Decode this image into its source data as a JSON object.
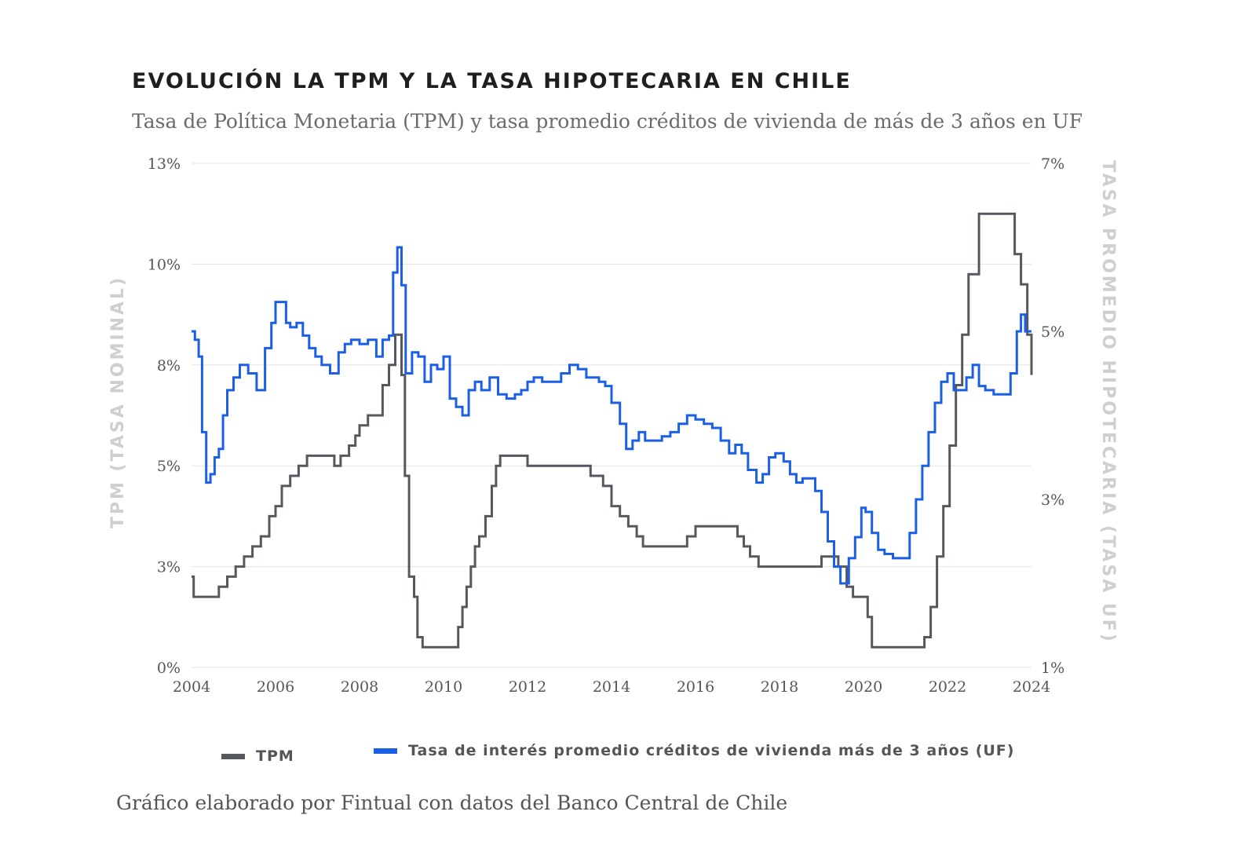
{
  "chart_data": {
    "type": "line",
    "title": "EVOLUCIÓN LA TPM Y LA TASA HIPOTECARIA EN CHILE",
    "subtitle": "Tasa de Política Monetaria (TPM) y tasa promedio créditos de vivienda de más de 3 años en UF",
    "caption": "Gráfico elaborado por Fintual con datos del Banco Central de Chile",
    "ylabel_left": "TPM (TASA NOMINAL)",
    "ylabel_right": "TASA PROMEDIO HIPOTECARIA (TASA UF)",
    "xlim": [
      2004,
      2024
    ],
    "ylim_left": [
      0,
      12.5
    ],
    "ylim_right": [
      1,
      7
    ],
    "xticks": [
      "2004",
      "2006",
      "2008",
      "2010",
      "2012",
      "2014",
      "2016",
      "2018",
      "2020",
      "2022",
      "2024"
    ],
    "yticks_left": [
      {
        "value": 0,
        "label": "0%"
      },
      {
        "value": 2.5,
        "label": "3%"
      },
      {
        "value": 5,
        "label": "5%"
      },
      {
        "value": 7.5,
        "label": "8%"
      },
      {
        "value": 10,
        "label": "10%"
      },
      {
        "value": 12.5,
        "label": "13%"
      }
    ],
    "yticks_right": [
      {
        "value": 1,
        "label": "1%"
      },
      {
        "value": 3,
        "label": "3%"
      },
      {
        "value": 5,
        "label": "5%"
      },
      {
        "value": 7,
        "label": "7%"
      }
    ],
    "grid": true,
    "series": [
      {
        "name": "TPM",
        "axis": "left",
        "color": "#55585e",
        "step": true,
        "x": [
          2004.0,
          2004.05,
          2004.65,
          2004.85,
          2005.05,
          2005.25,
          2005.45,
          2005.65,
          2005.85,
          2006.0,
          2006.15,
          2006.35,
          2006.55,
          2006.75,
          2006.85,
          2007.4,
          2007.55,
          2007.75,
          2007.9,
          2008.0,
          2008.2,
          2008.35,
          2008.55,
          2008.7,
          2008.85,
          2008.95,
          2009.0,
          2009.08,
          2009.18,
          2009.3,
          2009.38,
          2009.5,
          2010.35,
          2010.45,
          2010.55,
          2010.65,
          2010.75,
          2010.85,
          2011.0,
          2011.15,
          2011.25,
          2011.35,
          2011.5,
          2012.0,
          2012.5,
          2013.5,
          2013.8,
          2014.0,
          2014.2,
          2014.4,
          2014.6,
          2014.75,
          2014.85,
          2015.0,
          2015.8,
          2016.0,
          2016.15,
          2016.5,
          2017.0,
          2017.15,
          2017.3,
          2017.5,
          2018.0,
          2018.7,
          2019.0,
          2019.4,
          2019.6,
          2019.75,
          2019.85,
          2020.1,
          2020.2,
          2021.35,
          2021.45,
          2021.6,
          2021.75,
          2021.9,
          2022.05,
          2022.2,
          2022.35,
          2022.5,
          2022.75,
          2023.5,
          2023.6,
          2023.75,
          2023.9,
          2024.0
        ],
        "y": [
          2.25,
          1.75,
          2.0,
          2.25,
          2.5,
          2.75,
          3.0,
          3.25,
          3.75,
          4.0,
          4.5,
          4.75,
          5.0,
          5.25,
          5.25,
          5.0,
          5.25,
          5.5,
          5.75,
          6.0,
          6.25,
          6.25,
          7.0,
          7.5,
          8.25,
          8.25,
          7.25,
          4.75,
          2.25,
          1.75,
          0.75,
          0.5,
          1.0,
          1.5,
          2.0,
          2.5,
          3.0,
          3.25,
          3.75,
          4.5,
          5.0,
          5.25,
          5.25,
          5.0,
          5.0,
          4.75,
          4.5,
          4.0,
          3.75,
          3.5,
          3.25,
          3.0,
          3.0,
          3.0,
          3.25,
          3.5,
          3.5,
          3.5,
          3.25,
          3.0,
          2.75,
          2.5,
          2.5,
          2.5,
          2.75,
          2.5,
          2.0,
          1.75,
          1.75,
          1.25,
          0.5,
          0.5,
          0.75,
          1.5,
          2.75,
          4.0,
          5.5,
          7.0,
          8.25,
          9.75,
          11.25,
          11.25,
          10.25,
          9.5,
          8.25,
          7.25
        ]
      },
      {
        "name": "Tasa de interés promedio créditos de vivienda más de 3 años (UF)",
        "axis": "right",
        "color": "#1a5fe6",
        "step": true,
        "x": [
          2004.0,
          2004.08,
          2004.17,
          2004.25,
          2004.35,
          2004.45,
          2004.55,
          2004.65,
          2004.75,
          2004.85,
          2005.0,
          2005.15,
          2005.35,
          2005.55,
          2005.75,
          2005.9,
          2006.0,
          2006.1,
          2006.25,
          2006.35,
          2006.5,
          2006.65,
          2006.8,
          2006.95,
          2007.1,
          2007.3,
          2007.5,
          2007.65,
          2007.8,
          2008.0,
          2008.2,
          2008.4,
          2008.55,
          2008.7,
          2008.8,
          2008.9,
          2009.0,
          2009.1,
          2009.25,
          2009.4,
          2009.55,
          2009.7,
          2009.85,
          2010.0,
          2010.15,
          2010.3,
          2010.45,
          2010.6,
          2010.75,
          2010.9,
          2011.1,
          2011.3,
          2011.5,
          2011.7,
          2011.85,
          2012.0,
          2012.15,
          2012.35,
          2012.5,
          2012.65,
          2012.8,
          2013.0,
          2013.2,
          2013.4,
          2013.55,
          2013.7,
          2013.85,
          2014.0,
          2014.2,
          2014.35,
          2014.5,
          2014.65,
          2014.8,
          2015.0,
          2015.2,
          2015.4,
          2015.6,
          2015.8,
          2016.0,
          2016.2,
          2016.4,
          2016.6,
          2016.8,
          2016.95,
          2017.1,
          2017.25,
          2017.45,
          2017.6,
          2017.75,
          2017.9,
          2018.1,
          2018.25,
          2018.4,
          2018.55,
          2018.7,
          2018.85,
          2019.0,
          2019.15,
          2019.3,
          2019.45,
          2019.55,
          2019.65,
          2019.8,
          2019.95,
          2020.05,
          2020.2,
          2020.35,
          2020.5,
          2020.7,
          2020.9,
          2021.1,
          2021.25,
          2021.4,
          2021.55,
          2021.7,
          2021.85,
          2022.0,
          2022.15,
          2022.3,
          2022.45,
          2022.6,
          2022.75,
          2022.9,
          2023.1,
          2023.3,
          2023.5,
          2023.65,
          2023.75,
          2023.85,
          2023.92,
          2024.0
        ],
        "y": [
          5.0,
          4.9,
          4.7,
          3.8,
          3.2,
          3.3,
          3.5,
          3.6,
          4.0,
          4.3,
          4.45,
          4.6,
          4.5,
          4.3,
          4.8,
          5.1,
          5.35,
          5.35,
          5.1,
          5.05,
          5.1,
          4.95,
          4.8,
          4.7,
          4.6,
          4.5,
          4.75,
          4.85,
          4.9,
          4.85,
          4.9,
          4.7,
          4.9,
          4.95,
          5.7,
          6.0,
          5.55,
          4.5,
          4.75,
          4.7,
          4.4,
          4.6,
          4.55,
          4.7,
          4.2,
          4.1,
          4.0,
          4.3,
          4.4,
          4.3,
          4.45,
          4.25,
          4.2,
          4.25,
          4.3,
          4.4,
          4.45,
          4.4,
          4.4,
          4.4,
          4.5,
          4.6,
          4.55,
          4.45,
          4.45,
          4.4,
          4.35,
          4.15,
          3.9,
          3.6,
          3.7,
          3.8,
          3.7,
          3.7,
          3.75,
          3.8,
          3.9,
          4.0,
          3.95,
          3.9,
          3.85,
          3.7,
          3.55,
          3.65,
          3.55,
          3.35,
          3.2,
          3.3,
          3.5,
          3.55,
          3.45,
          3.3,
          3.2,
          3.25,
          3.25,
          3.1,
          2.85,
          2.5,
          2.2,
          2.0,
          2.0,
          2.3,
          2.55,
          2.9,
          2.85,
          2.6,
          2.4,
          2.35,
          2.3,
          2.3,
          2.6,
          3.0,
          3.4,
          3.8,
          4.15,
          4.4,
          4.5,
          4.3,
          4.3,
          4.45,
          4.6,
          4.35,
          4.3,
          4.25,
          4.25,
          4.5,
          5.0,
          5.2,
          5.0,
          5.0,
          5.0
        ]
      }
    ]
  }
}
